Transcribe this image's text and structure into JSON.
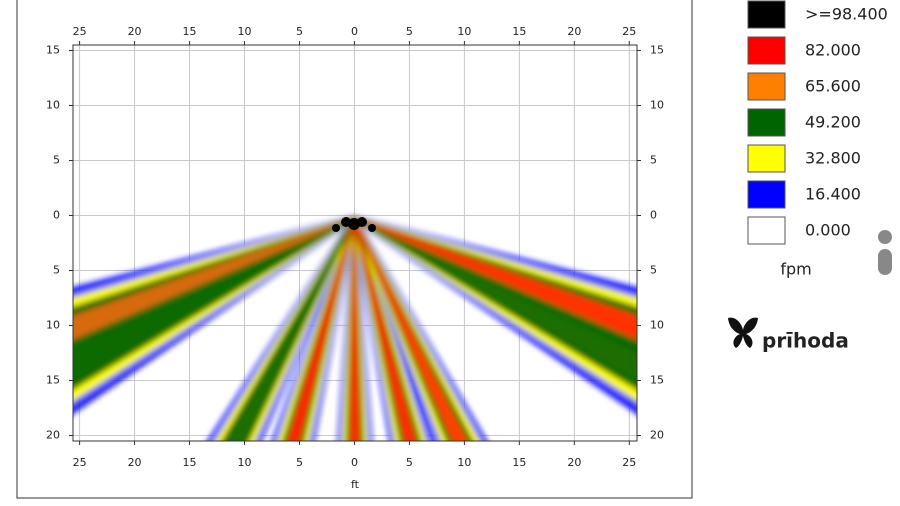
{
  "chart_data": {
    "type": "heatmap",
    "xlabel": "ft",
    "xlim": [
      -25.6,
      25.7
    ],
    "ylim": [
      -20.5,
      15.5
    ],
    "xticks": [
      {
        "value": -25,
        "label": "25"
      },
      {
        "value": -20,
        "label": "20"
      },
      {
        "value": -15,
        "label": "15"
      },
      {
        "value": -10,
        "label": "10"
      },
      {
        "value": -5,
        "label": "5"
      },
      0,
      5,
      10,
      15,
      20,
      25
    ],
    "yticks": [
      15,
      10,
      5,
      0,
      {
        "value": -5,
        "label": "5"
      },
      {
        "value": -10,
        "label": "10"
      },
      {
        "value": -15,
        "label": "15"
      },
      {
        "value": -20,
        "label": "20"
      }
    ],
    "grid": true,
    "legend": {
      "unit": "fpm",
      "items": [
        {
          "label": ">=98.400",
          "color": "#000000"
        },
        {
          "label": "82.000",
          "color": "#ff0000"
        },
        {
          "label": "65.600",
          "color": "#ff8000"
        },
        {
          "label": "49.200",
          "color": "#006400"
        },
        {
          "label": "32.800",
          "color": "#ffff00"
        },
        {
          "label": "16.400",
          "color": "#0000ff"
        },
        {
          "label": "0.000",
          "color": "#ffffff"
        }
      ]
    }
  },
  "logo": "prīhoda"
}
